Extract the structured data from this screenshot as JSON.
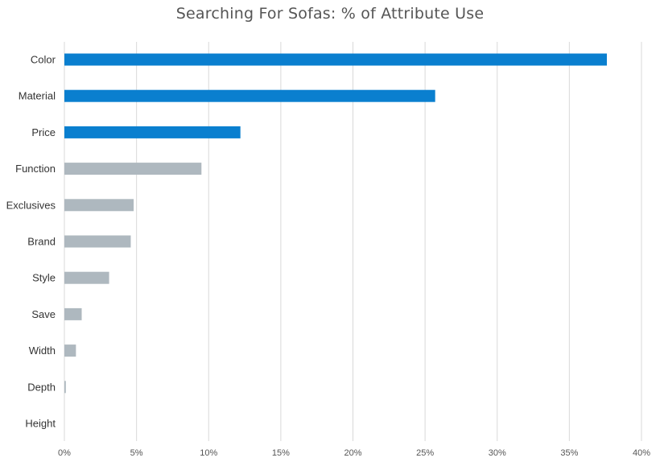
{
  "chart_data": {
    "type": "bar",
    "orientation": "horizontal",
    "title": "Searching For Sofas: % of Attribute Use",
    "xlabel": "",
    "ylabel": "",
    "categories": [
      "Color",
      "Material",
      "Price",
      "Function",
      "Exclusives",
      "Brand",
      "Style",
      "Save",
      "Width",
      "Depth",
      "Height"
    ],
    "values": [
      37.6,
      25.7,
      12.2,
      9.5,
      4.8,
      4.6,
      3.1,
      1.2,
      0.8,
      0.1,
      0.0
    ],
    "highlighted": [
      true,
      true,
      true,
      false,
      false,
      false,
      false,
      false,
      false,
      false,
      false
    ],
    "xlim": [
      0,
      40
    ],
    "x_ticks": [
      0,
      5,
      10,
      15,
      20,
      25,
      30,
      35,
      40
    ],
    "x_tick_labels": [
      "0%",
      "5%",
      "10%",
      "15%",
      "20%",
      "25%",
      "30%",
      "35%",
      "40%"
    ],
    "grid": "vertical",
    "legend": "none",
    "colors": {
      "highlight": "#0A7FCF",
      "default": "#AEB8BF",
      "grid": "#D9D9D9"
    }
  }
}
